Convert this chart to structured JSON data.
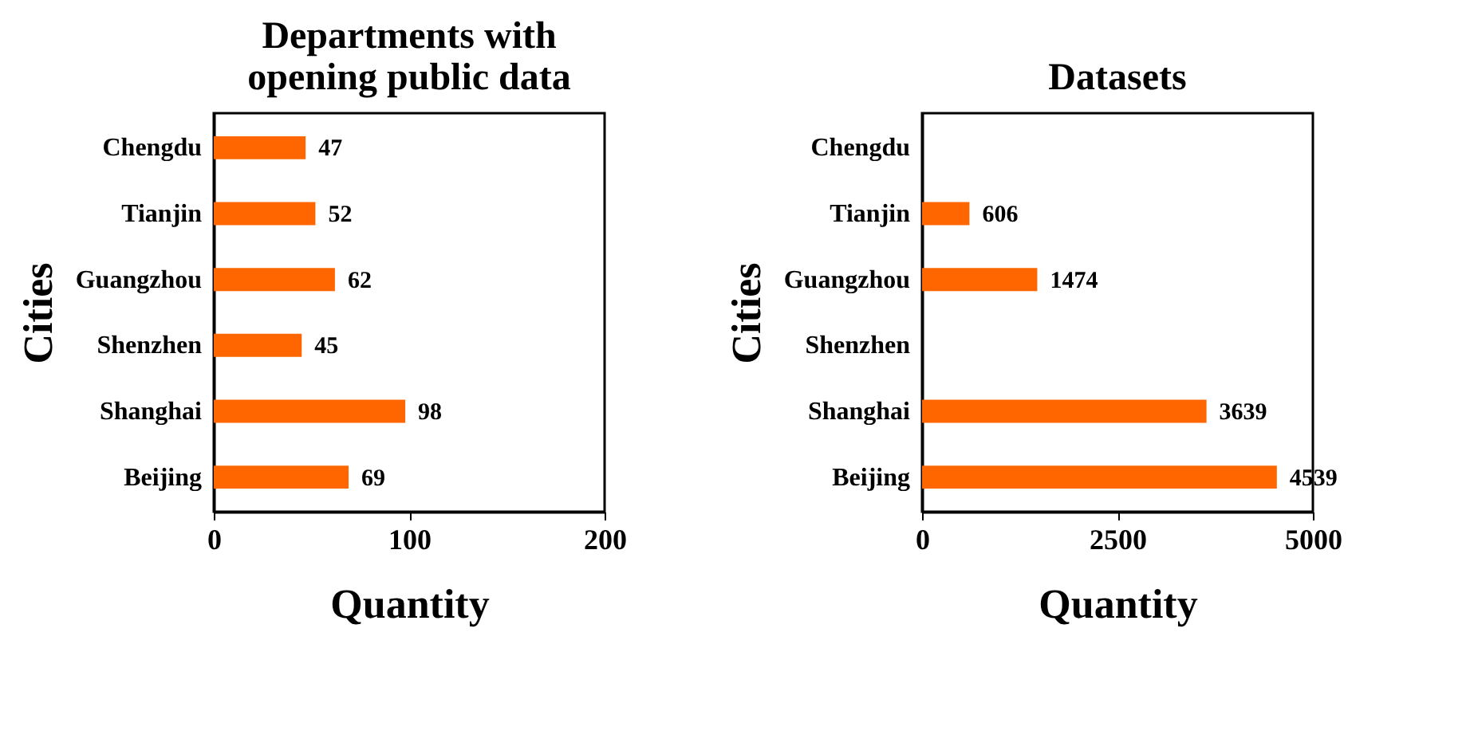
{
  "chart_data": [
    {
      "type": "bar",
      "orientation": "horizontal",
      "title": "Departments with\nopening public data",
      "xlabel": "Quantity",
      "ylabel": "Cities",
      "categories": [
        "Chengdu",
        "Tianjin",
        "Guangzhou",
        "Shenzhen",
        "Shanghai",
        "Beijing"
      ],
      "values": [
        47,
        52,
        62,
        45,
        98,
        69
      ],
      "color": "#ff6600",
      "xlim": [
        0,
        200
      ],
      "xticks": [
        0,
        100,
        200
      ],
      "data_labels": true,
      "grid": false
    },
    {
      "type": "bar",
      "orientation": "horizontal",
      "title": "Datasets",
      "xlabel": "Quantity",
      "ylabel": "Cities",
      "categories": [
        "Chengdu",
        "Tianjin",
        "Guangzhou",
        "Shenzhen",
        "Shanghai",
        "Beijing"
      ],
      "values": [
        null,
        606,
        1474,
        null,
        3639,
        4539
      ],
      "color": "#ff6600",
      "xlim": [
        0,
        5000
      ],
      "xticks": [
        0,
        2500,
        5000
      ],
      "data_labels": true,
      "grid": false
    }
  ]
}
